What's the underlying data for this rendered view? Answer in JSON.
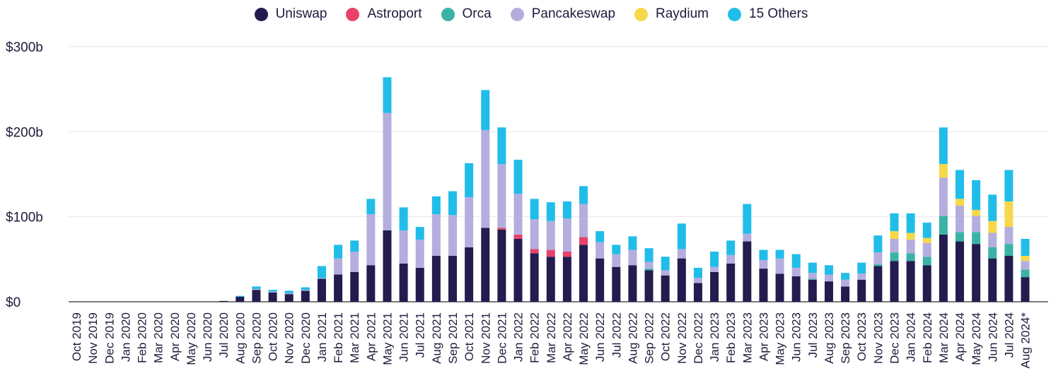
{
  "chart_data": {
    "type": "bar",
    "stacked": true,
    "title": "",
    "xlabel": "",
    "ylabel": "",
    "ylim": [
      0,
      300
    ],
    "y_unit": "billion USD",
    "yticks": [
      0,
      100,
      200,
      300
    ],
    "ytick_labels": [
      "$0",
      "$100b",
      "$200b",
      "$300b"
    ],
    "grid": "horizontal",
    "legend_position": "top-center",
    "categories": [
      "Oct 2019",
      "Nov 2019",
      "Dec 2019",
      "Jan 2020",
      "Feb 2020",
      "Mar 2020",
      "Apr 2020",
      "May 2020",
      "Jun 2020",
      "Jul 2020",
      "Aug 2020",
      "Sep 2020",
      "Oct 2020",
      "Nov 2020",
      "Dec 2020",
      "Jan 2021",
      "Feb 2021",
      "Mar 2021",
      "Apr 2021",
      "May 2021",
      "Jun 2021",
      "Jul 2021",
      "Aug 2021",
      "Sep 2021",
      "Oct 2021",
      "Nov 2021",
      "Dec 2021",
      "Jan 2022",
      "Feb 2022",
      "Mar 2022",
      "Apr 2022",
      "May 2022",
      "Jun 2022",
      "Jul 2022",
      "Aug 2022",
      "Sep 2022",
      "Oct 2022",
      "Nov 2022",
      "Dec 2022",
      "Jan 2023",
      "Feb 2023",
      "Mar 2023",
      "Apr 2023",
      "May 2023",
      "Jun 2023",
      "Jul 2023",
      "Aug 2023",
      "Sep 2023",
      "Oct 2023",
      "Nov 2023",
      "Dec 2023",
      "Jan 2024",
      "Feb 2024",
      "Mar 2024",
      "Apr 2024",
      "May 2024",
      "Jun 2024",
      "Jul 2024",
      "Aug 2024*"
    ],
    "series": [
      {
        "name": "Uniswap",
        "color": "#221c4f",
        "values": [
          0,
          0,
          0,
          0,
          0,
          0,
          0,
          0,
          0,
          1,
          6,
          14,
          11,
          9,
          13,
          27,
          32,
          35,
          43,
          84,
          45,
          40,
          54,
          54,
          64,
          87,
          85,
          74,
          57,
          53,
          53,
          67,
          51,
          41,
          43,
          37,
          31,
          51,
          22,
          35,
          45,
          71,
          39,
          33,
          30,
          26,
          24,
          18,
          26,
          42,
          48,
          48,
          43,
          79,
          71,
          68,
          51,
          54,
          29
        ]
      },
      {
        "name": "Astroport",
        "color": "#e8416a",
        "values": [
          0,
          0,
          0,
          0,
          0,
          0,
          0,
          0,
          0,
          0,
          0,
          0,
          0,
          0,
          0,
          0,
          0,
          0,
          0,
          0,
          0,
          0,
          0,
          0,
          0,
          0,
          2,
          5,
          5,
          8,
          6,
          9,
          0,
          0,
          0,
          0,
          0,
          0,
          0,
          0,
          0,
          0,
          0,
          0,
          0,
          0,
          0,
          0,
          0,
          0,
          0,
          0,
          0,
          0,
          0,
          0,
          0,
          0,
          0
        ]
      },
      {
        "name": "Orca",
        "color": "#3ab3a6",
        "values": [
          0,
          0,
          0,
          0,
          0,
          0,
          0,
          0,
          0,
          0,
          0,
          0,
          0,
          0,
          0,
          0,
          0,
          0,
          0,
          0,
          0,
          0,
          0,
          0,
          0,
          0,
          0,
          0,
          0,
          0,
          0,
          0,
          0,
          0,
          0,
          2,
          0,
          0,
          0,
          0,
          0,
          0,
          0,
          0,
          0,
          1,
          0,
          0,
          0,
          2,
          10,
          9,
          10,
          22,
          11,
          14,
          13,
          14,
          9
        ]
      },
      {
        "name": "Pancakeswap",
        "color": "#b4aedf",
        "values": [
          0,
          0,
          0,
          0,
          0,
          0,
          0,
          0,
          0,
          0,
          0,
          1,
          1,
          1,
          1,
          1,
          19,
          24,
          60,
          138,
          39,
          33,
          49,
          48,
          59,
          115,
          75,
          48,
          35,
          34,
          39,
          39,
          19,
          15,
          18,
          8,
          6,
          11,
          6,
          6,
          10,
          9,
          10,
          18,
          10,
          7,
          8,
          8,
          7,
          14,
          16,
          16,
          16,
          45,
          31,
          19,
          17,
          20,
          10
        ]
      },
      {
        "name": "Raydium",
        "color": "#f7d84a",
        "values": [
          0,
          0,
          0,
          0,
          0,
          0,
          0,
          0,
          0,
          0,
          0,
          0,
          0,
          0,
          0,
          0,
          0,
          0,
          0,
          0,
          0,
          0,
          0,
          0,
          0,
          0,
          0,
          0,
          0,
          0,
          0,
          0,
          0,
          0,
          0,
          0,
          0,
          0,
          0,
          0,
          0,
          0,
          0,
          0,
          0,
          0,
          0,
          0,
          0,
          0,
          9,
          8,
          6,
          16,
          8,
          7,
          14,
          30,
          6
        ]
      },
      {
        "name": "15 Others",
        "color": "#21bde9",
        "values": [
          0,
          0,
          0,
          0,
          0,
          0,
          0,
          0,
          0,
          0,
          1,
          3,
          2,
          3,
          3,
          14,
          16,
          13,
          18,
          42,
          27,
          15,
          21,
          28,
          40,
          47,
          43,
          40,
          24,
          22,
          20,
          21,
          13,
          11,
          16,
          16,
          16,
          30,
          12,
          18,
          17,
          35,
          12,
          10,
          16,
          12,
          11,
          8,
          13,
          20,
          21,
          23,
          18,
          43,
          34,
          35,
          31,
          37,
          20
        ]
      }
    ]
  }
}
